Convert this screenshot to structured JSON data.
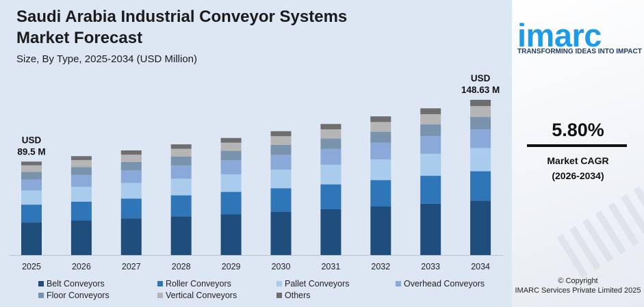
{
  "header": {
    "title_line1": "Saudi Arabia Industrial Conveyor Systems",
    "title_line2": "Market Forecast",
    "subtitle": "Size, By Type, 2025-2034 (USD Million)"
  },
  "brand": {
    "logo_text": "imarc",
    "tagline": "TRANSFORMING IDEAS INTO IMPACT",
    "logo_color": "#1e9be6"
  },
  "stats": {
    "cagr_value": "5.80%",
    "cagr_label_line1": "Market CAGR",
    "cagr_label_line2": "(2026-2034)"
  },
  "footer": {
    "copyright_line1": "© Copyright",
    "copyright_line2": "IMARC Services Private Limited 2025"
  },
  "chart_data": {
    "type": "bar",
    "stacked": true,
    "categories": [
      "2025",
      "2026",
      "2027",
      "2028",
      "2029",
      "2030",
      "2031",
      "2032",
      "2033",
      "2034"
    ],
    "totals": [
      89.5,
      94.7,
      100.2,
      106.0,
      112.1,
      118.6,
      125.5,
      132.8,
      140.5,
      148.63
    ],
    "first_callout": {
      "line1": "USD",
      "line2": "89.5 M"
    },
    "last_callout": {
      "line1": "USD",
      "line2": "148.63 M"
    },
    "ylim": [
      0,
      150
    ],
    "grid": false,
    "legend_position": "bottom",
    "series": [
      {
        "name": "Belt Conveyors",
        "color": "#1f4e7d",
        "values": [
          31.3,
          33.1,
          35.1,
          37.1,
          39.2,
          41.5,
          43.9,
          46.5,
          49.2,
          52.0
        ]
      },
      {
        "name": "Roller Conveyors",
        "color": "#2f76b8",
        "values": [
          17.0,
          18.0,
          19.0,
          20.1,
          21.3,
          22.5,
          23.8,
          25.2,
          26.7,
          28.2
        ]
      },
      {
        "name": "Pallet Conveyors",
        "color": "#a9cbec",
        "values": [
          13.4,
          14.2,
          15.0,
          15.9,
          16.8,
          17.8,
          18.8,
          19.9,
          21.1,
          22.3
        ]
      },
      {
        "name": "Overhead Conveyors",
        "color": "#8aa8d8",
        "values": [
          10.7,
          11.4,
          12.0,
          12.7,
          13.5,
          14.2,
          15.1,
          15.9,
          16.9,
          17.8
        ]
      },
      {
        "name": "Floor Conveyors",
        "color": "#7a93ad",
        "values": [
          7.2,
          7.6,
          8.0,
          8.5,
          9.0,
          9.5,
          10.0,
          10.6,
          11.2,
          11.9
        ]
      },
      {
        "name": "Vertical Conveyors",
        "color": "#b5b5b5",
        "values": [
          6.3,
          6.6,
          7.0,
          7.4,
          7.8,
          8.3,
          8.8,
          9.3,
          9.8,
          10.4
        ]
      },
      {
        "name": "Others",
        "color": "#6e6e6e",
        "values": [
          3.6,
          3.8,
          4.1,
          4.3,
          4.5,
          4.8,
          5.1,
          5.4,
          5.6,
          6.03
        ]
      }
    ]
  }
}
